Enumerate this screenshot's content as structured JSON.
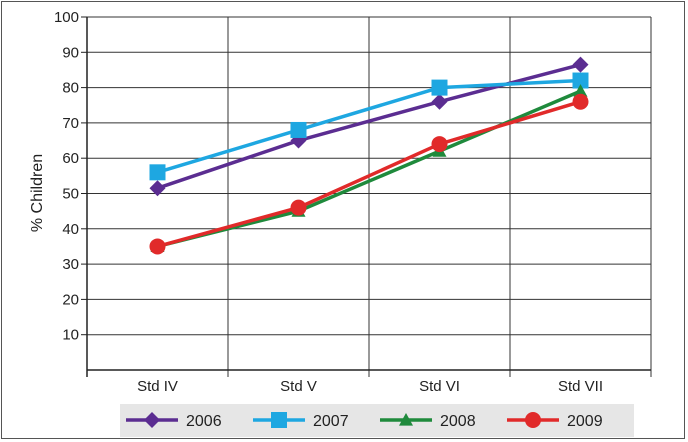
{
  "chart_data": {
    "type": "line",
    "title": "",
    "xlabel": "",
    "ylabel": "% Children",
    "categories": [
      "Std IV",
      "Std V",
      "Std VI",
      "Std VII"
    ],
    "ylim": [
      0,
      100
    ],
    "yticks": [
      10,
      20,
      30,
      40,
      50,
      60,
      70,
      80,
      90,
      100
    ],
    "grid": true,
    "legend_position": "bottom",
    "series": [
      {
        "name": "2006",
        "color": "#5b2d91",
        "marker": "diamond",
        "values": [
          51.5,
          65,
          76,
          86.5
        ]
      },
      {
        "name": "2007",
        "color": "#1ea7e1",
        "marker": "square",
        "values": [
          56,
          68,
          80,
          82
        ]
      },
      {
        "name": "2008",
        "color": "#1f8a3c",
        "marker": "triangle",
        "values": [
          35,
          45,
          62,
          79
        ]
      },
      {
        "name": "2009",
        "color": "#e12a2a",
        "marker": "circle",
        "values": [
          35,
          46,
          64,
          76
        ]
      }
    ]
  }
}
